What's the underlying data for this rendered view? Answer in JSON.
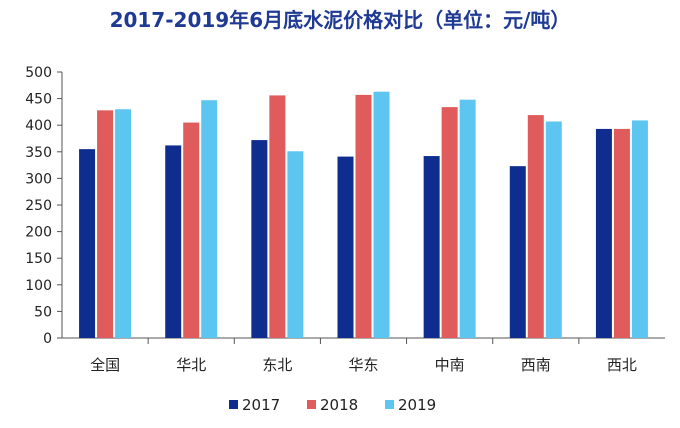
{
  "chart_data": {
    "type": "bar",
    "title": "2017-2019年6月底水泥价格对比（单位：元/吨）",
    "xlabel": "",
    "ylabel": "",
    "ylim": [
      0,
      500
    ],
    "yticks": [
      0,
      50,
      100,
      150,
      200,
      250,
      300,
      350,
      400,
      450,
      500
    ],
    "grid": false,
    "legend": "bottom",
    "categories": [
      "全国",
      "华北",
      "东北",
      "华东",
      "中南",
      "西南",
      "西北"
    ],
    "series": [
      {
        "name": "2017",
        "color": "#0f2d8f",
        "values": [
          355,
          362,
          372,
          341,
          342,
          323,
          393
        ]
      },
      {
        "name": "2018",
        "color": "#e05c5c",
        "values": [
          428,
          405,
          456,
          457,
          434,
          419,
          393
        ]
      },
      {
        "name": "2019",
        "color": "#5cc6f0",
        "values": [
          430,
          447,
          351,
          463,
          448,
          407,
          409
        ]
      }
    ]
  }
}
